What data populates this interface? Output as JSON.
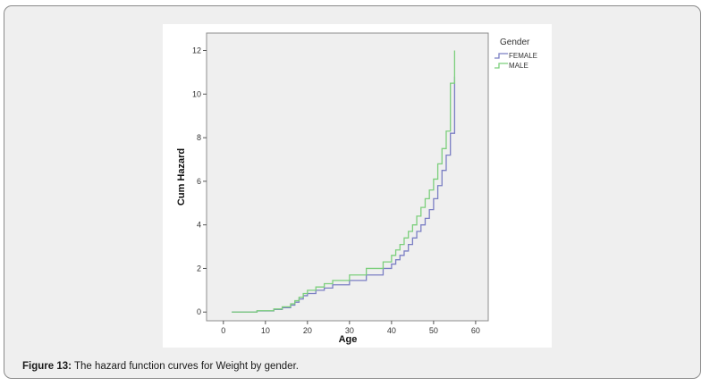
{
  "caption": {
    "label": "Figure 13:",
    "text": " The hazard function curves for Weight by gender."
  },
  "chart_data": {
    "type": "line",
    "step": true,
    "title": "",
    "xlabel": "Age",
    "ylabel": "Cum Hazard",
    "xlim": [
      -4,
      63
    ],
    "ylim": [
      -0.4,
      12.8
    ],
    "xticks": [
      0,
      10,
      20,
      30,
      40,
      50,
      60
    ],
    "yticks": [
      0,
      2,
      4,
      6,
      8,
      10,
      12
    ],
    "grid": false,
    "legend": {
      "title": "Gender",
      "position": "right"
    },
    "plot_background": "#efefef",
    "series": [
      {
        "name": "FEMALE",
        "color": "#7b7fc4",
        "x": [
          2,
          8,
          12,
          14,
          16,
          17,
          18,
          19,
          20,
          22,
          24,
          26,
          30,
          34,
          38,
          40,
          41,
          42,
          43,
          44,
          45,
          46,
          47,
          48,
          49,
          50,
          51,
          52,
          53,
          54,
          55
        ],
        "y": [
          0,
          0.05,
          0.12,
          0.2,
          0.32,
          0.45,
          0.6,
          0.75,
          0.85,
          1.0,
          1.1,
          1.25,
          1.45,
          1.7,
          2.0,
          2.2,
          2.4,
          2.6,
          2.8,
          3.1,
          3.4,
          3.7,
          4.0,
          4.3,
          4.7,
          5.2,
          5.8,
          6.5,
          7.2,
          8.2,
          10.8
        ]
      },
      {
        "name": "MALE",
        "color": "#7ccf7c",
        "x": [
          2,
          8,
          12,
          14,
          16,
          17,
          18,
          19,
          20,
          22,
          24,
          26,
          30,
          34,
          38,
          40,
          41,
          42,
          43,
          44,
          45,
          46,
          47,
          48,
          49,
          50,
          51,
          52,
          53,
          54,
          55
        ],
        "y": [
          0,
          0.06,
          0.14,
          0.24,
          0.38,
          0.52,
          0.68,
          0.85,
          1.0,
          1.15,
          1.3,
          1.45,
          1.7,
          2.0,
          2.3,
          2.6,
          2.85,
          3.1,
          3.4,
          3.7,
          4.0,
          4.4,
          4.8,
          5.2,
          5.6,
          6.1,
          6.8,
          7.5,
          8.3,
          10.5,
          12.0
        ]
      }
    ]
  }
}
